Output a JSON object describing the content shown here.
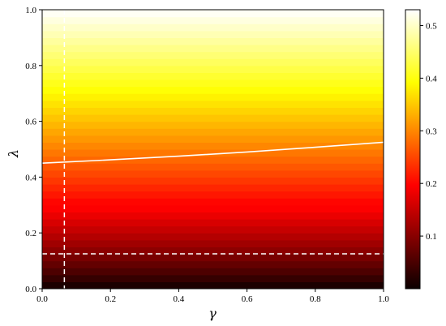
{
  "chart_data": {
    "type": "heatmap",
    "title": "",
    "xlabel": "γ",
    "ylabel": "λ",
    "xlim": [
      0.0,
      1.0
    ],
    "ylim": [
      0.0,
      1.0
    ],
    "xticks": [
      "0.0",
      "0.2",
      "0.4",
      "0.6",
      "0.8",
      "1.0"
    ],
    "yticks": [
      "0.0",
      "0.2",
      "0.4",
      "0.6",
      "0.8",
      "1.0"
    ],
    "colormap": "hot",
    "colorbar": {
      "range": [
        0.0,
        0.53
      ],
      "ticks": [
        "0.1",
        "0.2",
        "0.3",
        "0.4",
        "0.5"
      ]
    },
    "value_model": "value increases with λ from about 0.0 at λ=0 to about 0.53 at λ=1, nearly independent of γ",
    "contour_solid": {
      "color": "#ffffff",
      "points": [
        [
          0.0,
          0.45
        ],
        [
          0.2,
          0.462
        ],
        [
          0.4,
          0.475
        ],
        [
          0.6,
          0.49
        ],
        [
          0.8,
          0.507
        ],
        [
          1.0,
          0.525
        ]
      ]
    },
    "dashed_vertical": {
      "x": 0.065,
      "color": "#ffffff"
    },
    "dashed_horizontal": {
      "y": 0.125,
      "color": "#ffffff"
    },
    "grid": false,
    "legend": "none"
  }
}
